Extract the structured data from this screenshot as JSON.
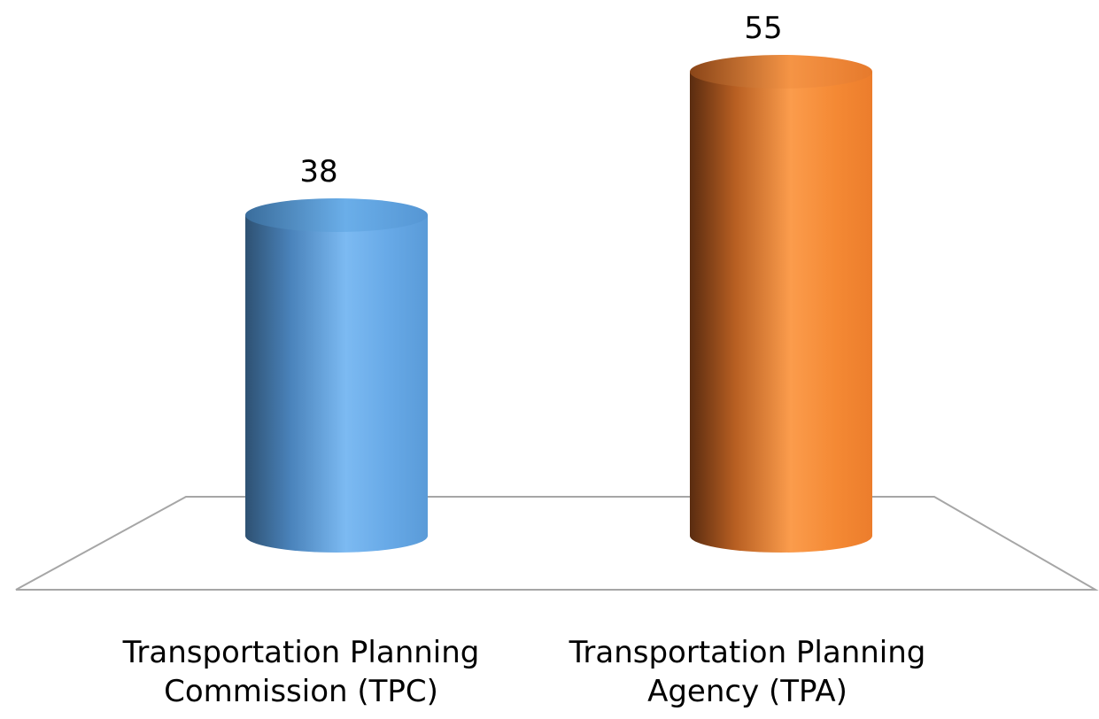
{
  "chart_data": {
    "type": "bar",
    "style": "3d-cylinder",
    "categories": [
      [
        "Transportation Planning",
        "Commission (TPC)"
      ],
      [
        "Transportation Planning",
        "Agency (TPA)"
      ]
    ],
    "values": [
      38,
      55
    ],
    "data_labels": [
      "38",
      "55"
    ],
    "colors": [
      "#5B9BD5",
      "#ED7D31"
    ],
    "title": "",
    "xlabel": "",
    "ylabel": "",
    "ylim": [
      0,
      55
    ],
    "grid": false,
    "legend": "none"
  }
}
